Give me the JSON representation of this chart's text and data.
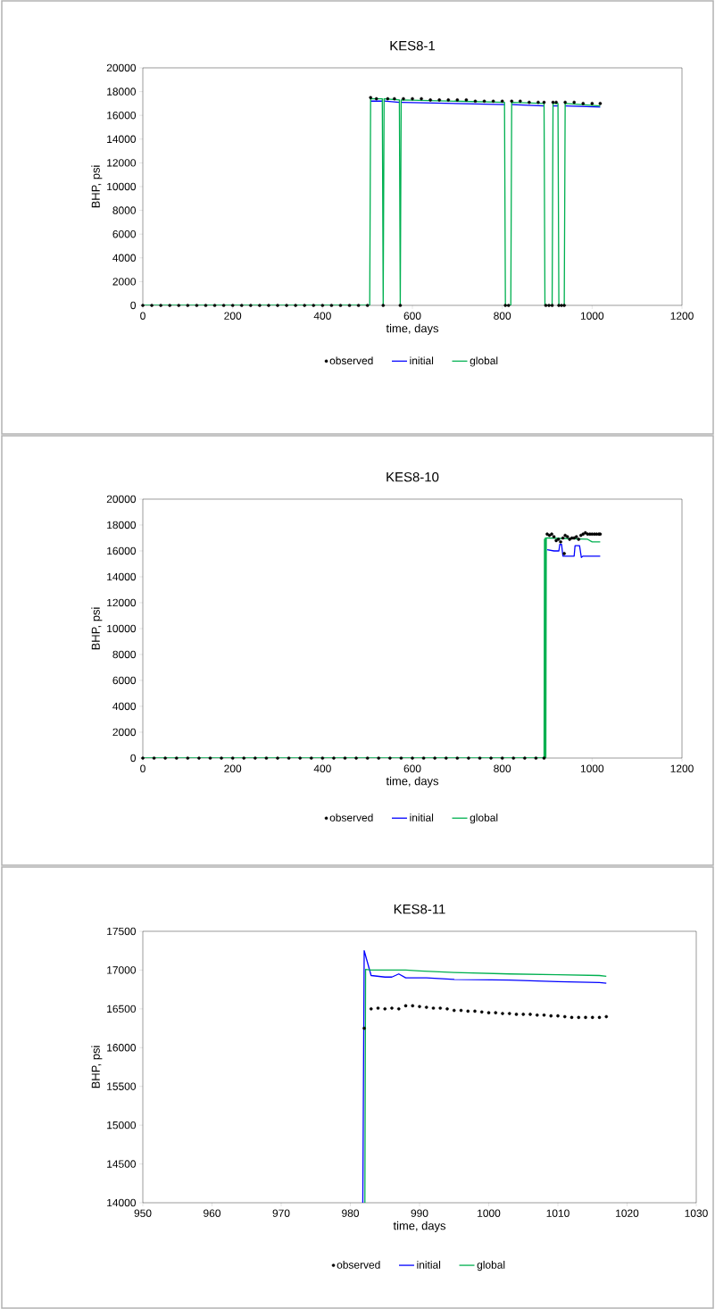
{
  "chart_data": [
    {
      "type": "line",
      "title": "KES8-1",
      "xlabel": "time, days",
      "ylabel": "BHP, psi",
      "xlim": [
        0,
        1200
      ],
      "ylim": [
        0,
        20000
      ],
      "xticks": [
        0,
        200,
        400,
        600,
        800,
        1000,
        1200
      ],
      "yticks": [
        0,
        2000,
        4000,
        6000,
        8000,
        10000,
        12000,
        14000,
        16000,
        18000,
        20000
      ],
      "legend": "bottom",
      "series": [
        {
          "name": "observed",
          "type": "scatter",
          "color": "#000000",
          "x": [
            0,
            20,
            40,
            60,
            80,
            100,
            120,
            140,
            160,
            180,
            200,
            220,
            240,
            260,
            280,
            300,
            320,
            340,
            360,
            380,
            400,
            420,
            440,
            460,
            480,
            500,
            507,
            520,
            535,
            545,
            560,
            573,
            580,
            600,
            620,
            640,
            660,
            680,
            700,
            720,
            740,
            760,
            780,
            800,
            807,
            814,
            821,
            840,
            860,
            880,
            893,
            897,
            904,
            911,
            913,
            920,
            926,
            932,
            938,
            940,
            960,
            980,
            1000,
            1018
          ],
          "values": [
            0,
            0,
            0,
            0,
            0,
            0,
            0,
            0,
            0,
            0,
            0,
            0,
            0,
            0,
            0,
            0,
            0,
            0,
            0,
            0,
            0,
            0,
            0,
            0,
            0,
            0,
            17500,
            17400,
            0,
            17400,
            17400,
            0,
            17400,
            17400,
            17400,
            17300,
            17300,
            17300,
            17300,
            17300,
            17200,
            17200,
            17200,
            17200,
            0,
            0,
            17200,
            17200,
            17100,
            17100,
            17100,
            0,
            0,
            0,
            17100,
            17100,
            0,
            0,
            0,
            17100,
            17100,
            17000,
            17000,
            17000
          ]
        },
        {
          "name": "initial",
          "type": "line",
          "color": "#0000ff",
          "x": [
            507,
            533,
            534,
            537,
            571,
            572,
            575,
            805,
            806,
            821,
            893,
            894,
            913,
            924,
            925,
            940,
            1018
          ],
          "values": [
            17200,
            17200,
            null,
            17200,
            17100,
            null,
            17100,
            16900,
            null,
            16900,
            16800,
            null,
            16800,
            16800,
            null,
            16800,
            16700
          ]
        },
        {
          "name": "global",
          "type": "line",
          "color": "#00b050",
          "x": [
            0,
            505,
            507,
            533,
            535,
            537,
            571,
            573,
            575,
            805,
            807,
            819,
            821,
            893,
            895,
            911,
            913,
            924,
            926,
            938,
            940,
            1018
          ],
          "values": [
            0,
            0,
            17400,
            17400,
            0,
            17400,
            17300,
            0,
            17300,
            17100,
            0,
            0,
            17100,
            17000,
            0,
            0,
            17000,
            17000,
            0,
            0,
            17000,
            16800
          ]
        }
      ]
    },
    {
      "type": "line",
      "title": "KES8-10",
      "xlabel": "time, days",
      "ylabel": "BHP, psi",
      "xlim": [
        0,
        1200
      ],
      "ylim": [
        0,
        20000
      ],
      "xticks": [
        0,
        200,
        400,
        600,
        800,
        1000,
        1200
      ],
      "yticks": [
        0,
        2000,
        4000,
        6000,
        8000,
        10000,
        12000,
        14000,
        16000,
        18000,
        20000
      ],
      "legend": "bottom",
      "series": [
        {
          "name": "observed",
          "type": "scatter",
          "color": "#000000",
          "x": [
            0,
            25,
            50,
            75,
            100,
            125,
            150,
            175,
            200,
            225,
            250,
            275,
            300,
            325,
            350,
            375,
            400,
            425,
            450,
            475,
            500,
            525,
            550,
            575,
            600,
            625,
            650,
            675,
            700,
            725,
            750,
            775,
            800,
            825,
            850,
            875,
            893,
            900,
            905,
            910,
            915,
            920,
            925,
            930,
            935,
            938,
            940,
            945,
            950,
            955,
            960,
            965,
            970,
            975,
            980,
            985,
            990,
            995,
            1000,
            1005,
            1010,
            1015,
            1018
          ],
          "values": [
            0,
            0,
            0,
            0,
            0,
            0,
            0,
            0,
            0,
            0,
            0,
            0,
            0,
            0,
            0,
            0,
            0,
            0,
            0,
            0,
            0,
            0,
            0,
            0,
            0,
            0,
            0,
            0,
            0,
            0,
            0,
            0,
            0,
            0,
            0,
            0,
            0,
            17300,
            17200,
            17300,
            17100,
            16800,
            16900,
            16700,
            17000,
            15800,
            17200,
            17100,
            16900,
            17000,
            17000,
            17100,
            16900,
            17200,
            17300,
            17400,
            17300,
            17300,
            17300,
            17300,
            17300,
            17300,
            17300
          ]
        },
        {
          "name": "initial",
          "type": "line",
          "color": "#0000ff",
          "x": [
            900,
            915,
            926,
            928,
            932,
            935,
            960,
            962,
            972,
            976,
            980,
            1018
          ],
          "values": [
            16100,
            16000,
            16000,
            16500,
            16500,
            15600,
            15600,
            16400,
            16400,
            15500,
            15600,
            15600
          ]
        },
        {
          "name": "global",
          "type": "line",
          "color": "#00b050",
          "x": [
            0,
            893,
            894,
            895,
            896,
            897,
            898,
            900,
            990,
            1000,
            1018
          ],
          "values": [
            0,
            0,
            16900,
            0,
            17000,
            0,
            17000,
            17000,
            16900,
            16700,
            16700
          ]
        }
      ]
    },
    {
      "type": "line",
      "title": "KES8-11",
      "xlabel": "time, days",
      "ylabel": "BHP, psi",
      "xlim": [
        950,
        1030
      ],
      "ylim": [
        14000,
        17500
      ],
      "xticks": [
        950,
        960,
        970,
        980,
        990,
        1000,
        1010,
        1020,
        1030
      ],
      "yticks": [
        14000,
        14500,
        15000,
        15500,
        16000,
        16500,
        17000,
        17500
      ],
      "legend": "bottom",
      "series": [
        {
          "name": "observed",
          "type": "scatter",
          "color": "#000000",
          "x": [
            982,
            983,
            984,
            985,
            986,
            987,
            988,
            989,
            990,
            991,
            992,
            993,
            994,
            995,
            996,
            997,
            998,
            999,
            1000,
            1001,
            1002,
            1003,
            1004,
            1005,
            1006,
            1007,
            1008,
            1009,
            1010,
            1011,
            1012,
            1013,
            1014,
            1015,
            1016,
            1017
          ],
          "values": [
            16250,
            16500,
            16510,
            16500,
            16510,
            16500,
            16540,
            16540,
            16530,
            16520,
            16510,
            16510,
            16500,
            16480,
            16480,
            16470,
            16470,
            16460,
            16450,
            16450,
            16440,
            16440,
            16430,
            16430,
            16430,
            16420,
            16420,
            16410,
            16410,
            16400,
            16390,
            16390,
            16390,
            16390,
            16390,
            16400
          ]
        },
        {
          "name": "initial",
          "type": "line",
          "color": "#0000ff",
          "x": [
            981.8,
            982,
            983,
            985,
            986,
            987,
            988,
            991,
            995,
            1003,
            1010,
            1016,
            1017
          ],
          "values": [
            14000,
            17250,
            16930,
            16910,
            16910,
            16950,
            16900,
            16900,
            16880,
            16870,
            16850,
            16840,
            16830
          ]
        },
        {
          "name": "global",
          "type": "line",
          "color": "#00b050",
          "x": [
            982.1,
            982.2,
            983,
            988,
            990,
            995,
            1003,
            1010,
            1016,
            1017
          ],
          "values": [
            14000,
            17010,
            17000,
            17000,
            16990,
            16970,
            16950,
            16940,
            16930,
            16920
          ]
        }
      ]
    }
  ]
}
